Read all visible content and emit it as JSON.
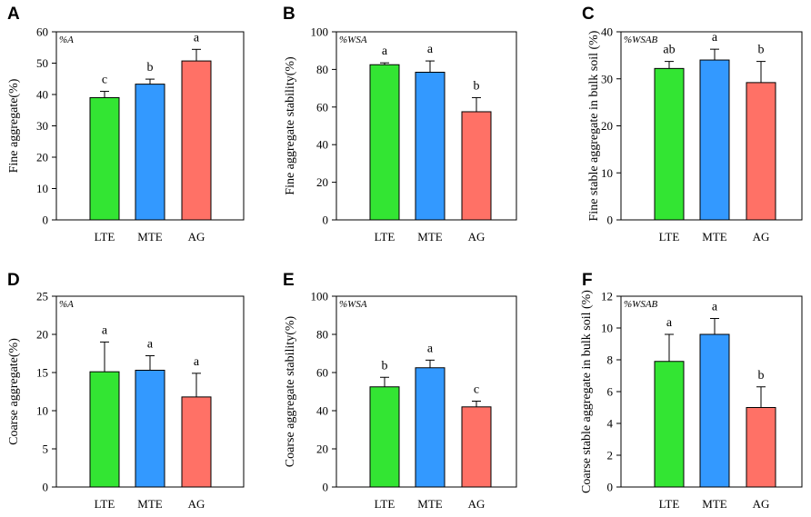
{
  "categories": [
    "LTE",
    "MTE",
    "AG"
  ],
  "colors": {
    "LTE": "#33e533",
    "MTE": "#3399ff",
    "AG": "#ff7166"
  },
  "chart_data": [
    {
      "type": "bar",
      "panel": "A",
      "metric": "%A",
      "ylabel": "Fine aggregate(%)",
      "categories": [
        "LTE",
        "MTE",
        "AG"
      ],
      "values": [
        39,
        43.3,
        50.7
      ],
      "errors": [
        2,
        1.6,
        3.7
      ],
      "letters": [
        "c",
        "b",
        "a"
      ],
      "ylim": [
        0,
        60
      ],
      "yticks": [
        0,
        10,
        20,
        30,
        40,
        50,
        60
      ]
    },
    {
      "type": "bar",
      "panel": "B",
      "metric": "%WSA",
      "ylabel": "Fine aggregate stability(%)",
      "categories": [
        "LTE",
        "MTE",
        "AG"
      ],
      "values": [
        82.5,
        78.5,
        57.5
      ],
      "errors": [
        1,
        6,
        7.5
      ],
      "letters": [
        "a",
        "a",
        "b"
      ],
      "ylim": [
        0,
        100
      ],
      "yticks": [
        0,
        20,
        40,
        60,
        80,
        100
      ]
    },
    {
      "type": "bar",
      "panel": "C",
      "metric": "%WSAB",
      "ylabel": "Fine stable aggregate in bulk soil (%)",
      "categories": [
        "LTE",
        "MTE",
        "AG"
      ],
      "values": [
        32.2,
        34,
        29.2
      ],
      "errors": [
        1.5,
        2.3,
        4.5
      ],
      "letters": [
        "ab",
        "a",
        "b"
      ],
      "ylim": [
        0,
        40
      ],
      "yticks": [
        0,
        10,
        20,
        30,
        40
      ]
    },
    {
      "type": "bar",
      "panel": "D",
      "metric": "%A",
      "ylabel": "Coarse aggregate(%)",
      "categories": [
        "LTE",
        "MTE",
        "AG"
      ],
      "values": [
        15.1,
        15.3,
        11.8
      ],
      "errors": [
        3.9,
        1.9,
        3.1
      ],
      "letters": [
        "a",
        "a",
        "a"
      ],
      "ylim": [
        0,
        25
      ],
      "yticks": [
        0,
        5,
        10,
        15,
        20,
        25
      ]
    },
    {
      "type": "bar",
      "panel": "E",
      "metric": "%WSA",
      "ylabel": "Coarse aggregate stability(%)",
      "categories": [
        "LTE",
        "MTE",
        "AG"
      ],
      "values": [
        52.5,
        62.5,
        42
      ],
      "errors": [
        5,
        4,
        3
      ],
      "letters": [
        "b",
        "a",
        "c"
      ],
      "ylim": [
        0,
        100
      ],
      "yticks": [
        0,
        20,
        40,
        60,
        80,
        100
      ]
    },
    {
      "type": "bar",
      "panel": "F",
      "metric": "%WSAB",
      "ylabel": "Coarse stable aggregate in bulk soil (%)",
      "categories": [
        "LTE",
        "MTE",
        "AG"
      ],
      "values": [
        7.9,
        9.6,
        5
      ],
      "errors": [
        1.7,
        1,
        1.3
      ],
      "letters": [
        "a",
        "a",
        "b"
      ],
      "ylim": [
        0,
        12
      ],
      "yticks": [
        0,
        2,
        4,
        6,
        8,
        10,
        12
      ]
    }
  ]
}
